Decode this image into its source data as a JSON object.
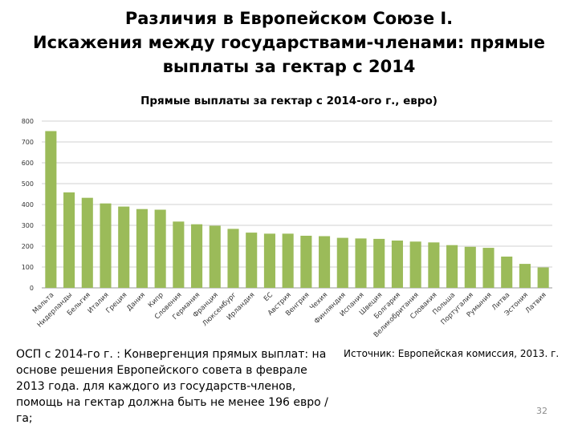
{
  "slide": {
    "title_lines": [
      "Различия в Европейском Союзе I.",
      "Искажения между государствами-членами: прямые",
      "выплаты за гектар с 2014"
    ],
    "body_text": "ОСП с 2014-го г. : Конвергенция прямых выплат: на основе решения Европейского совета в феврале 2013 года. для каждого из государств-членов, помощь на гектар должна быть не менее 196 евро / га;",
    "source": "Источник: Европейская комиссия, 2013. г.",
    "slide_number": "32"
  },
  "chart_data": {
    "type": "bar",
    "title": "Прямые выплаты за гектар с 2014-ого г., евро)",
    "xlabel": "",
    "ylabel": "",
    "ylim": [
      0,
      800
    ],
    "yticks": [
      0,
      100,
      200,
      300,
      400,
      500,
      600,
      700,
      800
    ],
    "grid": true,
    "legend": "none",
    "bar_color": "#9bbb59",
    "categories": [
      "Мальта",
      "Нидерланды",
      "Бельгия",
      "Италия",
      "Греция",
      "Дания",
      "Кипр",
      "Словения",
      "Германия",
      "Франция",
      "Люксембург",
      "Ирландия",
      "ЕС",
      "Австрия",
      "Венгрия",
      "Чехия",
      "Финляндия",
      "Испания",
      "Швеция",
      "Болгария",
      "Великобритания",
      "Словакия",
      "Польша",
      "Португалия",
      "Румыния",
      "Литва",
      "Эстония",
      "Латвия"
    ],
    "values": [
      752,
      458,
      432,
      405,
      390,
      378,
      375,
      318,
      305,
      298,
      283,
      265,
      260,
      260,
      250,
      248,
      240,
      237,
      235,
      227,
      222,
      218,
      205,
      197,
      192,
      150,
      115,
      98
    ]
  }
}
